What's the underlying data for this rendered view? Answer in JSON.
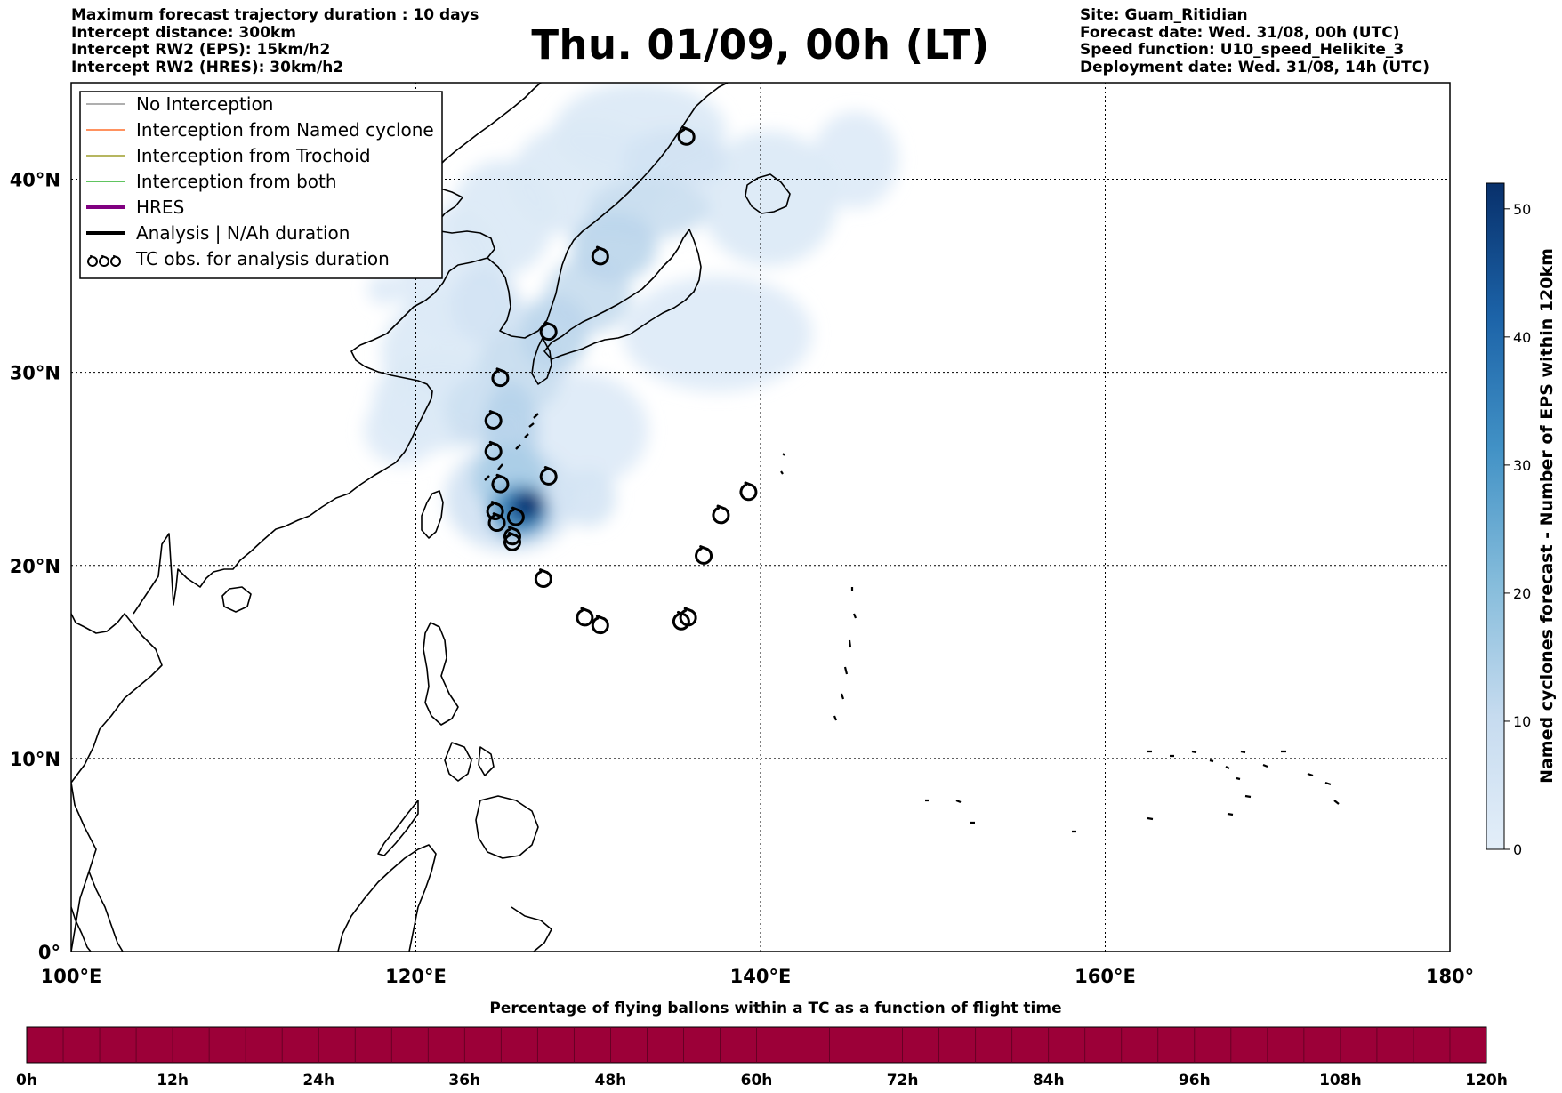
{
  "header_left": [
    "Maximum forecast trajectory duration : 10 days",
    "Intercept distance: 300km",
    "Intercept RW2 (EPS):  15km/h2",
    "Intercept RW2 (HRES): 30km/h2"
  ],
  "title": "Thu. 01/09, 00h (LT)",
  "header_right": [
    "Site: Guam_Ritidian",
    "Forecast date: Wed. 31/08, 00h (UTC)",
    "Speed function: U10_speed_Helikite_3",
    "Deployment date: Wed. 31/08, 14h (UTC)"
  ],
  "map": {
    "lon_range": [
      100,
      180
    ],
    "lat_range": [
      0,
      45
    ],
    "lon_ticks": [
      {
        "value": 100,
        "label": "100°E"
      },
      {
        "value": 120,
        "label": "120°E"
      },
      {
        "value": 140,
        "label": "140°E"
      },
      {
        "value": 160,
        "label": "160°E"
      },
      {
        "value": 180,
        "label": "180°"
      }
    ],
    "lat_ticks": [
      {
        "value": 0,
        "label": "0°"
      },
      {
        "value": 10,
        "label": "10°N"
      },
      {
        "value": 20,
        "label": "20°N"
      },
      {
        "value": 30,
        "label": "30°N"
      },
      {
        "value": 40,
        "label": "40°N"
      }
    ],
    "grid": "dotted",
    "tc_observations": [
      {
        "lon": 135.7,
        "lat": 42.2
      },
      {
        "lon": 130.7,
        "lat": 36.0
      },
      {
        "lon": 127.7,
        "lat": 32.1
      },
      {
        "lon": 124.9,
        "lat": 29.7
      },
      {
        "lon": 124.5,
        "lat": 27.5
      },
      {
        "lon": 124.5,
        "lat": 25.9
      },
      {
        "lon": 124.9,
        "lat": 24.2
      },
      {
        "lon": 127.7,
        "lat": 24.6
      },
      {
        "lon": 124.6,
        "lat": 22.8
      },
      {
        "lon": 124.7,
        "lat": 22.2
      },
      {
        "lon": 125.8,
        "lat": 22.5
      },
      {
        "lon": 125.6,
        "lat": 21.5
      },
      {
        "lon": 125.6,
        "lat": 21.2
      },
      {
        "lon": 127.4,
        "lat": 19.3
      },
      {
        "lon": 129.8,
        "lat": 17.3
      },
      {
        "lon": 130.7,
        "lat": 16.9
      },
      {
        "lon": 135.4,
        "lat": 17.1
      },
      {
        "lon": 135.8,
        "lat": 17.3
      },
      {
        "lon": 136.7,
        "lat": 20.5
      },
      {
        "lon": 137.7,
        "lat": 22.6
      },
      {
        "lon": 139.3,
        "lat": 23.8
      }
    ]
  },
  "legend": {
    "placement": "top-left",
    "items": [
      {
        "label": "No Interception",
        "color": "#7f7f7f",
        "style": "thin-line"
      },
      {
        "label": "Interception from Named cyclone",
        "color": "#ff5000",
        "style": "thin-line"
      },
      {
        "label": "Interception from Trochoid",
        "color": "#8b8b00",
        "style": "thin-line"
      },
      {
        "label": "Interception from both",
        "color": "#00a000",
        "style": "thin-line"
      },
      {
        "label": "HRES",
        "color": "#800080",
        "style": "thick-line"
      },
      {
        "label": "Analysis | N/Ah duration",
        "color": "#000000",
        "style": "thick-line"
      },
      {
        "label": "TC obs. for analysis duration",
        "color": "#000000",
        "style": "tc-symbols"
      }
    ]
  },
  "colorbar": {
    "label": "Named cyclones forecast - Number of EPS within 120km",
    "range": [
      0,
      52
    ],
    "ticks": [
      0,
      10,
      20,
      30,
      40,
      50
    ],
    "color_low": "#e3eef9",
    "color_high": "#08306b"
  },
  "flight_bar": {
    "title": "Percentage of flying ballons within a TC as a function of flight time",
    "color": "#9c0038",
    "ticks": [
      "0h",
      "12h",
      "24h",
      "36h",
      "48h",
      "60h",
      "72h",
      "84h",
      "96h",
      "108h",
      "120h"
    ]
  },
  "density_blobs": [
    {
      "lon": 123.0,
      "lat": 31.0,
      "rx": 5.0,
      "ry": 3.5,
      "value": 3
    },
    {
      "lon": 121.5,
      "lat": 28.5,
      "rx": 4.0,
      "ry": 2.5,
      "value": 3
    },
    {
      "lon": 119.2,
      "lat": 27.0,
      "rx": 2.2,
      "ry": 1.8,
      "value": 2
    },
    {
      "lon": 118.2,
      "lat": 34.3,
      "rx": 1.0,
      "ry": 0.8,
      "value": 2
    },
    {
      "lon": 122.0,
      "lat": 35.0,
      "rx": 3.0,
      "ry": 3.5,
      "value": 2
    },
    {
      "lon": 125.0,
      "lat": 38.0,
      "rx": 3.0,
      "ry": 3.0,
      "value": 3
    },
    {
      "lon": 130.0,
      "lat": 40.0,
      "rx": 4.5,
      "ry": 3.0,
      "value": 3
    },
    {
      "lon": 133.0,
      "lat": 42.5,
      "rx": 5.0,
      "ry": 2.5,
      "value": 3
    },
    {
      "lon": 140.5,
      "lat": 39.0,
      "rx": 4.0,
      "ry": 3.5,
      "value": 3
    },
    {
      "lon": 145.5,
      "lat": 41.0,
      "rx": 2.5,
      "ry": 2.5,
      "value": 2
    },
    {
      "lon": 137.5,
      "lat": 32.0,
      "rx": 5.5,
      "ry": 3.0,
      "value": 2
    },
    {
      "lon": 129.5,
      "lat": 27.0,
      "rx": 4.0,
      "ry": 3.0,
      "value": 2
    },
    {
      "lon": 130.0,
      "lat": 23.5,
      "rx": 1.6,
      "ry": 1.5,
      "value": 5
    },
    {
      "lon": 125.5,
      "lat": 23.5,
      "rx": 3.8,
      "ry": 2.8,
      "value": 6
    },
    {
      "lon": 124.0,
      "lat": 33.5,
      "rx": 2.0,
      "ry": 2.0,
      "value": 6
    },
    {
      "lon": 135.0,
      "lat": 41.0,
      "rx": 3.0,
      "ry": 1.6,
      "value": 6
    },
    {
      "lon": 126.0,
      "lat": 30.0,
      "rx": 2.5,
      "ry": 2.2,
      "value": 9
    },
    {
      "lon": 130.0,
      "lat": 34.0,
      "rx": 2.5,
      "ry": 2.0,
      "value": 10
    },
    {
      "lon": 133.5,
      "lat": 38.5,
      "rx": 3.5,
      "ry": 1.6,
      "value": 9
    },
    {
      "lon": 123.5,
      "lat": 28.0,
      "rx": 1.8,
      "ry": 1.8,
      "value": 8
    },
    {
      "lon": 131.5,
      "lat": 36.5,
      "rx": 2.5,
      "ry": 1.8,
      "value": 12
    },
    {
      "lon": 128.0,
      "lat": 32.0,
      "rx": 2.0,
      "ry": 2.0,
      "value": 12
    },
    {
      "lon": 125.5,
      "lat": 27.0,
      "rx": 1.6,
      "ry": 2.5,
      "value": 13
    },
    {
      "lon": 125.5,
      "lat": 24.5,
      "rx": 2.2,
      "ry": 1.8,
      "value": 15
    },
    {
      "lon": 126.0,
      "lat": 22.8,
      "rx": 1.8,
      "ry": 1.4,
      "value": 30
    },
    {
      "lon": 126.3,
      "lat": 23.0,
      "rx": 1.1,
      "ry": 0.9,
      "value": 45
    },
    {
      "lon": 126.6,
      "lat": 23.2,
      "rx": 0.8,
      "ry": 0.7,
      "value": 52
    }
  ]
}
